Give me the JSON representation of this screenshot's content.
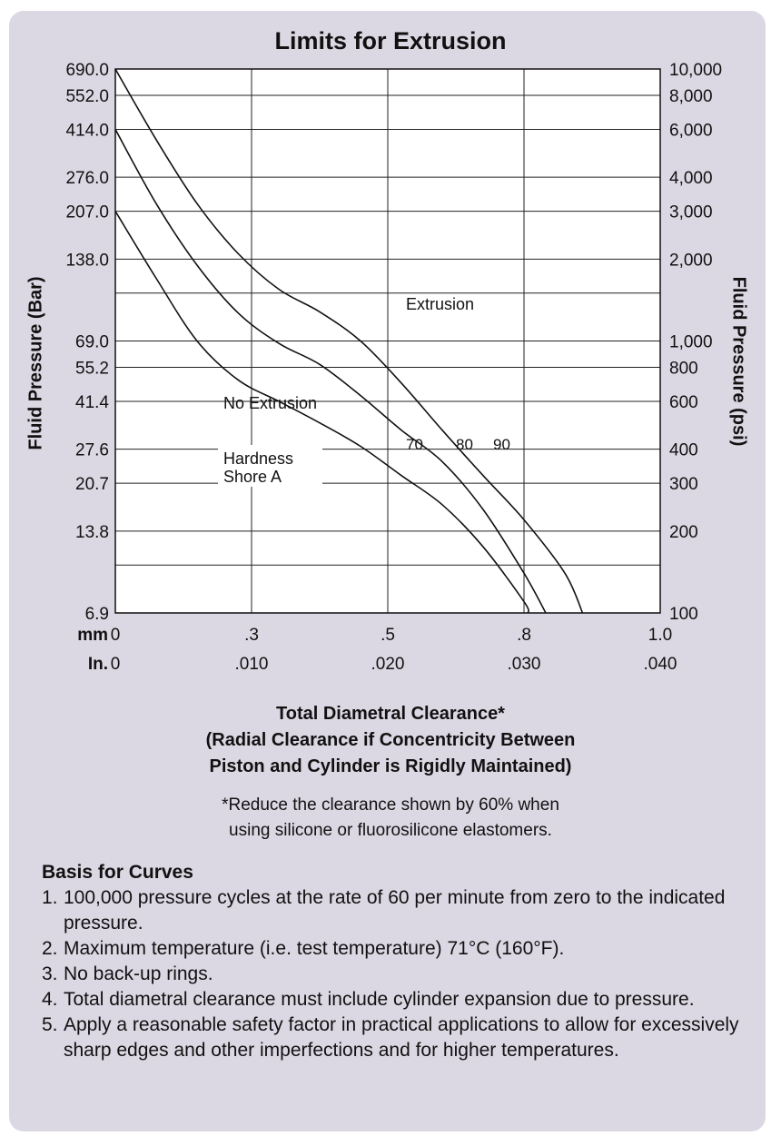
{
  "chart_data": {
    "type": "line",
    "title": "Limits for Extrusion",
    "ylabel_left": "Fluid Pressure (Bar)",
    "ylabel_right": "Fluid Pressure (psi)",
    "xlabel": "Total Diametral Clearance*",
    "xlabel_sub": [
      "(Radial Clearance if Concentricity Between",
      "Piston and Cylinder is Rigidly Maintained)"
    ],
    "x_unit_labels": [
      "mm",
      "In."
    ],
    "x_ticks_mm": [
      "0",
      ".3",
      ".5",
      ".8",
      "1.0"
    ],
    "x_ticks_in": [
      "0",
      ".010",
      ".020",
      ".030",
      ".040"
    ],
    "x_tick_values_in": [
      0,
      0.01,
      0.02,
      0.03,
      0.04
    ],
    "xlim_in": [
      0,
      0.04
    ],
    "y_scale": "log",
    "ylim_psi": [
      100,
      10000
    ],
    "y_ticks_bar": [
      {
        "label": "690.0",
        "psi": 10000
      },
      {
        "label": "552.0",
        "psi": 8000
      },
      {
        "label": "414.0",
        "psi": 6000
      },
      {
        "label": "276.0",
        "psi": 4000
      },
      {
        "label": "207.0",
        "psi": 3000
      },
      {
        "label": "138.0",
        "psi": 2000
      },
      {
        "label": "69.0",
        "psi": 1000
      },
      {
        "label": "55.2",
        "psi": 800
      },
      {
        "label": "41.4",
        "psi": 600
      },
      {
        "label": "27.6",
        "psi": 400
      },
      {
        "label": "20.7",
        "psi": 300
      },
      {
        "label": "13.8",
        "psi": 200
      },
      {
        "label": "6.9",
        "psi": 100
      }
    ],
    "y_ticks_psi": [
      {
        "label": "10,000",
        "psi": 10000
      },
      {
        "label": "8,000",
        "psi": 8000
      },
      {
        "label": "6,000",
        "psi": 6000
      },
      {
        "label": "4,000",
        "psi": 4000
      },
      {
        "label": "3,000",
        "psi": 3000
      },
      {
        "label": "2,000",
        "psi": 2000
      },
      {
        "label": "1,000",
        "psi": 1000
      },
      {
        "label": "800",
        "psi": 800
      },
      {
        "label": "600",
        "psi": 600
      },
      {
        "label": "400",
        "psi": 400
      },
      {
        "label": "300",
        "psi": 300
      },
      {
        "label": "200",
        "psi": 200
      },
      {
        "label": "100",
        "psi": 100
      }
    ],
    "h_grid_psi": [
      10000,
      8000,
      6000,
      4000,
      3000,
      2000,
      1500,
      1000,
      800,
      600,
      400,
      300,
      200,
      150
    ],
    "grid": true,
    "series": [
      {
        "name": "70",
        "points": [
          [
            0,
            3000
          ],
          [
            0.003,
            1700
          ],
          [
            0.006,
            1000
          ],
          [
            0.009,
            720
          ],
          [
            0.012,
            600
          ],
          [
            0.015,
            500
          ],
          [
            0.018,
            410
          ],
          [
            0.021,
            320
          ],
          [
            0.024,
            250
          ],
          [
            0.027,
            175
          ],
          [
            0.03,
            110
          ],
          [
            0.0303,
            100
          ]
        ]
      },
      {
        "name": "80",
        "points": [
          [
            0,
            6000
          ],
          [
            0.003,
            3200
          ],
          [
            0.006,
            1900
          ],
          [
            0.009,
            1270
          ],
          [
            0.012,
            980
          ],
          [
            0.015,
            820
          ],
          [
            0.018,
            630
          ],
          [
            0.021,
            470
          ],
          [
            0.024,
            360
          ],
          [
            0.027,
            240
          ],
          [
            0.03,
            140
          ],
          [
            0.0316,
            100
          ]
        ]
      },
      {
        "name": "90",
        "points": [
          [
            0,
            10000
          ],
          [
            0.003,
            5500
          ],
          [
            0.006,
            3200
          ],
          [
            0.009,
            2100
          ],
          [
            0.012,
            1550
          ],
          [
            0.015,
            1280
          ],
          [
            0.018,
            1000
          ],
          [
            0.021,
            700
          ],
          [
            0.024,
            470
          ],
          [
            0.027,
            320
          ],
          [
            0.03,
            220
          ],
          [
            0.033,
            140
          ],
          [
            0.0343,
            100
          ]
        ]
      }
    ],
    "annotations": {
      "extrusion": "Extrusion",
      "no_extrusion": "No Extrusion",
      "hardness_line1": "Hardness",
      "hardness_line2": "Shore A"
    }
  },
  "notes": {
    "footnote_line1": "*Reduce the clearance shown by 60% when",
    "footnote_line2": "using silicone or fluorosilicone elastomers."
  },
  "basis": {
    "title": "Basis for Curves",
    "items": [
      {
        "num": "1.",
        "text": "100,000 pressure cycles at the rate of 60 per minute from zero to the indicated pressure."
      },
      {
        "num": "2.",
        "text": "Maximum temperature (i.e. test temperature) 71°C (160°F)."
      },
      {
        "num": "3.",
        "text": "No back-up rings."
      },
      {
        "num": "4.",
        "text": "Total diametral clearance must include cylinder expansion due to pressure."
      },
      {
        "num": "5.",
        "text": "Apply a reasonable safety factor in practical applications to allow for excessively sharp edges and other imperfections and for higher temperatures."
      }
    ]
  }
}
